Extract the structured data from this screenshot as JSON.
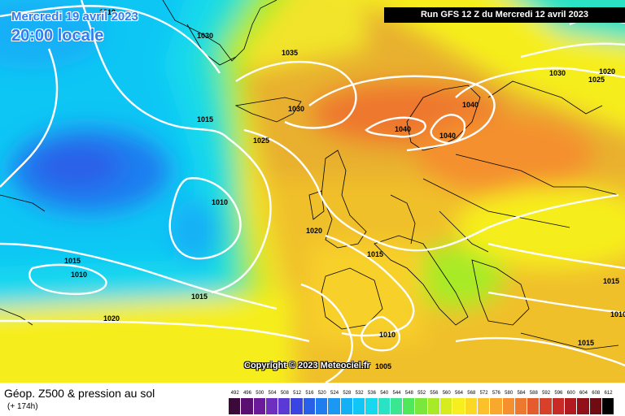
{
  "header": {
    "date": "Mercredi 19 avril 2023",
    "time": "20:00 locale",
    "run": "Run GFS 12 Z du Mercredi 12 avril 2023"
  },
  "footer": {
    "field": "Géop. Z500 & pression au sol",
    "lead": "(+ 174h)",
    "copyright": "Copyright © 2023 Meteociel.fr"
  },
  "isobar_labels": [
    "1010",
    "1030",
    "1035",
    "1030",
    "1015",
    "1025",
    "1040",
    "1040",
    "1040",
    "1030",
    "1025",
    "1020",
    "1010",
    "1020",
    "1015",
    "1015",
    "1010",
    "1015",
    "1020",
    "1010",
    "1005",
    "1015",
    "1010",
    "1015"
  ],
  "legend": {
    "ticks": [
      "492",
      "496",
      "500",
      "504",
      "508",
      "512",
      "516",
      "520",
      "524",
      "528",
      "532",
      "536",
      "540",
      "544",
      "548",
      "552",
      "556",
      "560",
      "564",
      "568",
      "572",
      "576",
      "580",
      "584",
      "588",
      "592",
      "596",
      "600",
      "604",
      "608",
      "612"
    ],
    "colors": [
      "#3b0a3b",
      "#5a1070",
      "#6a1a9a",
      "#6e2fc0",
      "#5a3ad6",
      "#3a44e0",
      "#2a60e8",
      "#1e7ef0",
      "#1a98f4",
      "#14b0f6",
      "#10c6f4",
      "#16d8ee",
      "#2ae2c4",
      "#3ae690",
      "#50e85a",
      "#7ae83a",
      "#a8ea28",
      "#d6ec1e",
      "#f6ee1e",
      "#fad824",
      "#fbc02a",
      "#f8a82c",
      "#f4902e",
      "#ee782e",
      "#e45c2e",
      "#d8402a",
      "#c82a26",
      "#b01a20",
      "#92101a",
      "#6e0c12",
      "#000000"
    ]
  },
  "colors": {
    "title": "#2f7df0",
    "contour": "#ffffff"
  }
}
